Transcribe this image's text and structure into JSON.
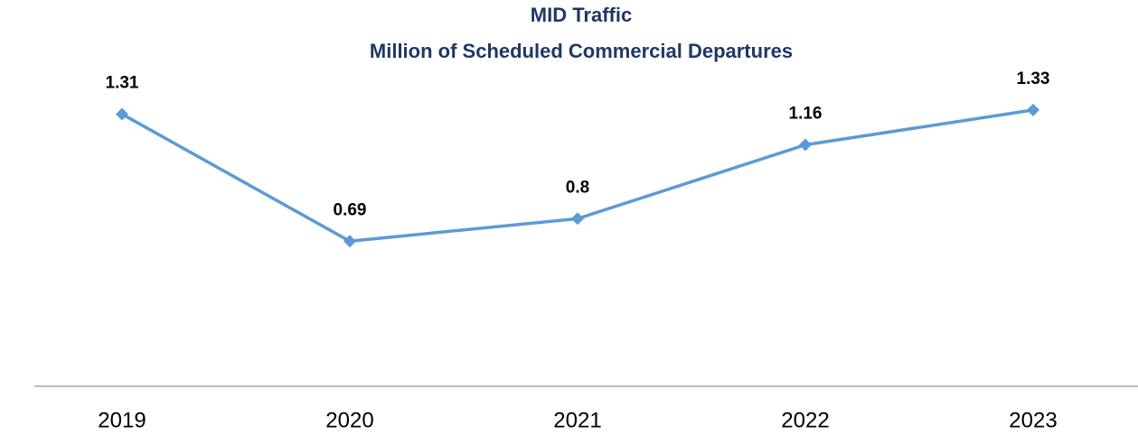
{
  "chart_data": {
    "type": "line",
    "title": "MID Traffic",
    "subtitle": "Million of Scheduled Commercial Departures",
    "categories": [
      "2019",
      "2020",
      "2021",
      "2022",
      "2023"
    ],
    "series": [
      {
        "name": "MID Traffic",
        "color": "#5b9bd5",
        "values": [
          1.31,
          0.69,
          0.8,
          1.16,
          1.33
        ]
      }
    ],
    "ylim": [
      0,
      1.4
    ]
  }
}
